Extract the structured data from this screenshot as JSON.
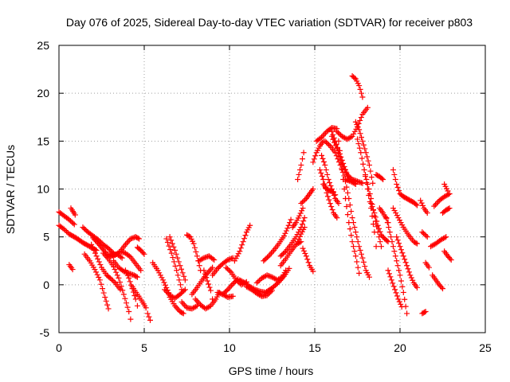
{
  "chart_data": {
    "type": "scatter",
    "title": "Day 076 of 2025, Sidereal Day-to-day VTEC variation (SDTVAR) for receiver p803",
    "xlabel": "GPS time / hours",
    "ylabel": "SDTVAR / TECUs",
    "xlim": [
      0,
      25
    ],
    "ylim": [
      -5,
      25
    ],
    "xticks": [
      0,
      5,
      10,
      15,
      20,
      25
    ],
    "yticks": [
      -5,
      0,
      5,
      10,
      15,
      20,
      25
    ],
    "grid": true,
    "marker": "+",
    "color": "#ff0000",
    "traces": [
      {
        "x": [
          0.0,
          0.3,
          0.6,
          0.9
        ],
        "y": [
          7.6,
          7.2,
          6.8,
          6.3
        ]
      },
      {
        "x": [
          0.0,
          0.3,
          0.6,
          1.0,
          1.4,
          1.8,
          2.2
        ],
        "y": [
          6.2,
          5.8,
          5.3,
          4.9,
          4.4,
          4.0,
          3.6
        ]
      },
      {
        "x": [
          0.7,
          0.95
        ],
        "y": [
          8.0,
          7.3
        ]
      },
      {
        "x": [
          0.6,
          0.8
        ],
        "y": [
          2.1,
          1.6
        ]
      },
      {
        "x": [
          1.4,
          1.7,
          2.0,
          2.3,
          2.6,
          2.9,
          3.2
        ],
        "y": [
          6.0,
          5.5,
          5.1,
          4.7,
          4.2,
          3.8,
          3.3
        ]
      },
      {
        "x": [
          1.5,
          1.8,
          2.1,
          2.4,
          2.7,
          2.9
        ],
        "y": [
          3.2,
          2.5,
          1.6,
          0.5,
          -1.3,
          -2.5
        ]
      },
      {
        "x": [
          1.9,
          2.2,
          2.5,
          2.8,
          3.0,
          3.3,
          3.6
        ],
        "y": [
          4.2,
          3.0,
          1.8,
          1.0,
          0.7,
          0.2,
          -0.5
        ]
      },
      {
        "x": [
          2.0,
          2.4,
          2.8,
          3.1,
          3.4,
          3.7
        ],
        "y": [
          4.9,
          4.1,
          3.2,
          3.1,
          3.2,
          2.8
        ]
      },
      {
        "x": [
          2.6,
          2.9,
          3.2,
          3.5,
          3.8,
          4.1,
          4.2
        ],
        "y": [
          3.3,
          2.7,
          1.9,
          0.7,
          -1.0,
          -2.8,
          -3.6
        ]
      },
      {
        "x": [
          3.0,
          3.3,
          3.6,
          3.9,
          4.2,
          4.5,
          4.7
        ],
        "y": [
          3.0,
          3.1,
          3.5,
          4.2,
          4.8,
          5.0,
          4.8
        ]
      },
      {
        "x": [
          3.2,
          3.5,
          3.8,
          4.1,
          4.4,
          4.6
        ],
        "y": [
          2.5,
          1.8,
          1.4,
          1.2,
          1.0,
          0.8
        ]
      },
      {
        "x": [
          3.6,
          3.9,
          4.2,
          4.5,
          4.8
        ],
        "y": [
          3.5,
          3.3,
          2.9,
          2.2,
          1.5
        ]
      },
      {
        "x": [
          3.9,
          4.1,
          4.3,
          4.5,
          4.6
        ],
        "y": [
          1.5,
          0.7,
          -0.4,
          -1.5,
          -2.2
        ]
      },
      {
        "x": [
          4.3,
          4.6,
          4.9,
          5.1
        ],
        "y": [
          -0.2,
          -1.0,
          -1.8,
          -2.4
        ]
      },
      {
        "x": [
          4.6,
          4.8,
          5.0
        ],
        "y": [
          3.9,
          3.6,
          3.2
        ]
      },
      {
        "x": [
          5.5,
          5.8,
          6.1,
          6.3,
          6.5
        ],
        "y": [
          2.3,
          1.5,
          0.5,
          -0.3,
          -1.1
        ]
      },
      {
        "x": [
          5.2,
          5.35
        ],
        "y": [
          -3.0,
          -3.7
        ]
      },
      {
        "x": [
          6.5,
          6.8,
          7.1,
          7.3
        ],
        "y": [
          -1.3,
          -2.2,
          -2.8,
          -3.0
        ]
      },
      {
        "x": [
          6.2,
          6.5,
          6.8,
          7.1,
          7.4
        ],
        "y": [
          -0.5,
          -1.1,
          -1.4,
          -1.0,
          -0.5
        ]
      },
      {
        "x": [
          6.3,
          6.6,
          6.9,
          7.2
        ],
        "y": [
          4.8,
          3.3,
          1.5,
          -0.5
        ]
      },
      {
        "x": [
          6.5,
          6.8,
          7.1,
          7.4
        ],
        "y": [
          5.0,
          3.6,
          2.0,
          0.5
        ]
      },
      {
        "x": [
          7.2,
          7.5,
          7.8,
          8.1
        ],
        "y": [
          -1.8,
          -2.4,
          -2.5,
          -2.2
        ]
      },
      {
        "x": [
          7.5,
          7.7,
          7.9,
          8.1,
          8.3
        ],
        "y": [
          5.2,
          5.0,
          4.3,
          3.0,
          1.5
        ]
      },
      {
        "x": [
          7.8,
          8.1,
          8.4,
          8.7,
          9.0
        ],
        "y": [
          -1.0,
          -0.3,
          0.5,
          1.2,
          1.8
        ]
      },
      {
        "x": [
          8.0,
          8.3,
          8.6,
          8.9,
          9.2,
          9.4
        ],
        "y": [
          -1.5,
          -2.1,
          -2.5,
          -2.2,
          -1.5,
          -0.8
        ]
      },
      {
        "x": [
          8.2,
          8.5,
          8.8,
          9.1
        ],
        "y": [
          2.5,
          2.8,
          3.0,
          2.6
        ]
      },
      {
        "x": [
          8.5,
          8.7,
          8.9,
          9.0
        ],
        "y": [
          1.5,
          0.4,
          -0.6,
          -1.5
        ]
      },
      {
        "x": [
          9.0,
          9.3,
          9.6,
          9.9,
          10.2
        ],
        "y": [
          1.0,
          1.7,
          2.2,
          2.6,
          2.8
        ]
      },
      {
        "x": [
          9.3,
          9.6,
          9.9,
          10.2
        ],
        "y": [
          -0.8,
          -1.0,
          -1.3,
          -1.2
        ]
      },
      {
        "x": [
          9.6,
          9.9,
          10.2,
          10.5
        ],
        "y": [
          -1.0,
          -0.5,
          0.1,
          0.6
        ]
      },
      {
        "x": [
          9.8,
          10.1,
          10.4,
          10.7,
          11.0
        ],
        "y": [
          1.8,
          1.3,
          0.5,
          0.0,
          0.3
        ]
      },
      {
        "x": [
          10.3,
          10.6,
          10.8,
          11.0,
          11.2
        ],
        "y": [
          2.5,
          3.5,
          4.5,
          5.5,
          6.2
        ]
      },
      {
        "x": [
          10.6,
          10.9,
          11.2,
          11.5,
          11.8,
          12.1,
          12.4
        ],
        "y": [
          0.5,
          0.2,
          -0.2,
          -0.5,
          -0.7,
          -0.8,
          -0.5
        ]
      },
      {
        "x": [
          11.0,
          11.3,
          11.6,
          11.9,
          12.2,
          12.5
        ],
        "y": [
          -0.2,
          -0.5,
          -0.9,
          -1.2,
          -1.1,
          -0.6
        ]
      },
      {
        "x": [
          11.6,
          11.9,
          12.2,
          12.5,
          12.8,
          13.1,
          13.3
        ],
        "y": [
          0.2,
          0.7,
          1.0,
          0.8,
          0.5,
          0.8,
          1.5
        ]
      },
      {
        "x": [
          12.3,
          12.6,
          12.9,
          13.2,
          13.5
        ],
        "y": [
          -0.6,
          -0.2,
          0.3,
          0.9,
          1.7
        ]
      },
      {
        "x": [
          12.0,
          12.3,
          12.6,
          12.9,
          13.2,
          13.4,
          13.6
        ],
        "y": [
          2.5,
          3.0,
          3.6,
          4.3,
          5.1,
          5.9,
          6.8
        ]
      },
      {
        "x": [
          13.0,
          13.3,
          13.6,
          13.9,
          14.2
        ],
        "y": [
          2.0,
          2.7,
          3.5,
          4.2,
          4.5
        ]
      },
      {
        "x": [
          13.0,
          13.3,
          13.6,
          13.9,
          14.2,
          14.4
        ],
        "y": [
          3.0,
          3.5,
          4.2,
          5.0,
          6.0,
          7.0
        ]
      },
      {
        "x": [
          14.0,
          14.2,
          14.4
        ],
        "y": [
          4.5,
          5.3,
          6.0
        ]
      },
      {
        "x": [
          13.7,
          13.9,
          14.1,
          14.3
        ],
        "y": [
          6.0,
          6.5,
          7.2,
          8.0
        ]
      },
      {
        "x": [
          14.0,
          14.2,
          14.35
        ],
        "y": [
          11.0,
          12.5,
          13.8
        ]
      },
      {
        "x": [
          14.3,
          14.5,
          14.7,
          14.9
        ],
        "y": [
          3.8,
          3.0,
          2.0,
          1.4
        ]
      },
      {
        "x": [
          14.2,
          14.5,
          14.7,
          14.9
        ],
        "y": [
          8.5,
          9.0,
          9.5,
          10.0
        ]
      },
      {
        "x": [
          14.9,
          15.1,
          15.3,
          15.5
        ],
        "y": [
          12.8,
          13.8,
          14.5,
          15.0
        ]
      },
      {
        "x": [
          15.1,
          15.4,
          15.7,
          16.0,
          16.3
        ],
        "y": [
          15.0,
          15.4,
          16.0,
          16.4,
          16.3
        ]
      },
      {
        "x": [
          15.3,
          15.5,
          15.7,
          15.9,
          16.1,
          16.3
        ],
        "y": [
          12.0,
          11.0,
          9.6,
          8.5,
          7.5,
          7.0
        ]
      },
      {
        "x": [
          15.4,
          15.6,
          15.8,
          16.0,
          16.2,
          16.4
        ],
        "y": [
          13.5,
          12.5,
          11.0,
          10.0,
          9.0,
          8.5
        ]
      },
      {
        "x": [
          15.5,
          15.7,
          15.9,
          16.1,
          16.2
        ],
        "y": [
          10.5,
          10.0,
          9.8,
          9.7,
          9.4
        ]
      },
      {
        "x": [
          15.6,
          15.9,
          16.2,
          16.5,
          16.8,
          17.1,
          17.4
        ],
        "y": [
          15.0,
          14.5,
          13.8,
          12.5,
          11.0,
          10.8,
          10.5
        ]
      },
      {
        "x": [
          16.0,
          16.3,
          16.6,
          16.9,
          17.2,
          17.5,
          17.8
        ],
        "y": [
          15.5,
          14.2,
          12.6,
          11.5,
          11.0,
          10.8,
          10.6
        ]
      },
      {
        "x": [
          16.0,
          16.2,
          16.4,
          16.6,
          16.8,
          17.0
        ],
        "y": [
          16.0,
          15.0,
          14.0,
          13.0,
          12.0,
          11.0
        ]
      },
      {
        "x": [
          16.3,
          16.6,
          16.9,
          17.2,
          17.5,
          17.8,
          18.1
        ],
        "y": [
          16.0,
          15.5,
          15.2,
          15.5,
          16.5,
          17.8,
          18.5
        ]
      },
      {
        "x": [
          16.4,
          16.6,
          16.8,
          17.0,
          17.2,
          17.4,
          17.6
        ],
        "y": [
          15.0,
          12.0,
          9.0,
          6.5,
          4.5,
          3.0,
          1.2
        ]
      },
      {
        "x": [
          16.8,
          17.0,
          17.2,
          17.4,
          17.6,
          17.8,
          18.0,
          18.2
        ],
        "y": [
          10.8,
          9.0,
          7.0,
          5.5,
          4.0,
          2.8,
          1.5,
          0.8
        ]
      },
      {
        "x": [
          17.2,
          17.4,
          17.6,
          17.8
        ],
        "y": [
          21.8,
          21.5,
          20.8,
          19.6
        ]
      },
      {
        "x": [
          17.4,
          17.6,
          17.8,
          18.0,
          18.2,
          18.4
        ],
        "y": [
          17.0,
          16.2,
          15.0,
          13.8,
          12.5,
          10.6
        ]
      },
      {
        "x": [
          17.5,
          17.7,
          17.9,
          18.1,
          18.3,
          18.5,
          18.6
        ],
        "y": [
          15.2,
          13.8,
          12.0,
          10.0,
          8.0,
          5.5,
          4.0
        ]
      },
      {
        "x": [
          17.9,
          18.1,
          18.3,
          18.5,
          18.7,
          18.9
        ],
        "y": [
          12.0,
          10.5,
          9.0,
          7.2,
          5.5,
          4.0
        ]
      },
      {
        "x": [
          18.3,
          18.5,
          18.7,
          18.9,
          19.1,
          19.3
        ],
        "y": [
          8.5,
          7.5,
          6.2,
          5.2,
          4.8,
          4.5
        ]
      },
      {
        "x": [
          18.6,
          18.8,
          19.0
        ],
        "y": [
          11.5,
          11.3,
          11.0
        ]
      },
      {
        "x": [
          18.8,
          19.0,
          19.2,
          19.3
        ],
        "y": [
          8.0,
          7.5,
          6.9,
          6.5
        ]
      },
      {
        "x": [
          19.2,
          19.4,
          19.6,
          19.8,
          20.0,
          20.2,
          20.4
        ],
        "y": [
          7.0,
          5.5,
          4.0,
          2.5,
          1.0,
          -0.8,
          -3.0
        ]
      },
      {
        "x": [
          19.3,
          19.5,
          19.7,
          19.9,
          20.1
        ],
        "y": [
          1.5,
          0.5,
          -0.5,
          -1.5,
          -2.3
        ]
      },
      {
        "x": [
          19.6,
          19.8,
          20.0,
          20.2,
          20.4,
          20.6,
          20.8,
          21.0
        ],
        "y": [
          12.0,
          10.5,
          9.5,
          9.2,
          9.0,
          8.8,
          8.6,
          8.3
        ]
      },
      {
        "x": [
          19.8,
          20.0,
          20.2,
          20.4,
          20.6,
          20.8,
          21.0
        ],
        "y": [
          5.0,
          4.0,
          3.0,
          2.0,
          1.0,
          0.2,
          -0.3
        ]
      },
      {
        "x": [
          19.6,
          19.9,
          20.2,
          20.5,
          20.8,
          21.0
        ],
        "y": [
          8.0,
          7.0,
          6.0,
          5.2,
          4.5,
          4.3
        ]
      },
      {
        "x": [
          21.2,
          21.4,
          21.6
        ],
        "y": [
          8.8,
          8.0,
          7.5
        ]
      },
      {
        "x": [
          21.3,
          21.6
        ],
        "y": [
          5.5,
          5.0
        ]
      },
      {
        "x": [
          21.5,
          21.7
        ],
        "y": [
          2.3,
          1.8
        ]
      },
      {
        "x": [
          21.3,
          21.5
        ],
        "y": [
          -3.0,
          -2.8
        ]
      },
      {
        "x": [
          21.8,
          22.1,
          22.4,
          22.7
        ],
        "y": [
          4.0,
          4.3,
          4.7,
          5.0
        ]
      },
      {
        "x": [
          21.9,
          22.1,
          22.3,
          22.5
        ],
        "y": [
          1.0,
          0.5,
          0.0,
          -0.4
        ]
      },
      {
        "x": [
          22.0,
          22.3,
          22.6,
          22.9
        ],
        "y": [
          8.2,
          8.8,
          9.2,
          9.5
        ]
      },
      {
        "x": [
          22.6,
          22.8,
          22.9
        ],
        "y": [
          10.5,
          9.8,
          9.5
        ]
      },
      {
        "x": [
          22.5,
          22.7,
          22.9
        ],
        "y": [
          7.5,
          7.8,
          8.0
        ]
      },
      {
        "x": [
          22.6,
          22.8,
          23.0
        ],
        "y": [
          3.5,
          3.0,
          2.6
        ]
      }
    ]
  }
}
